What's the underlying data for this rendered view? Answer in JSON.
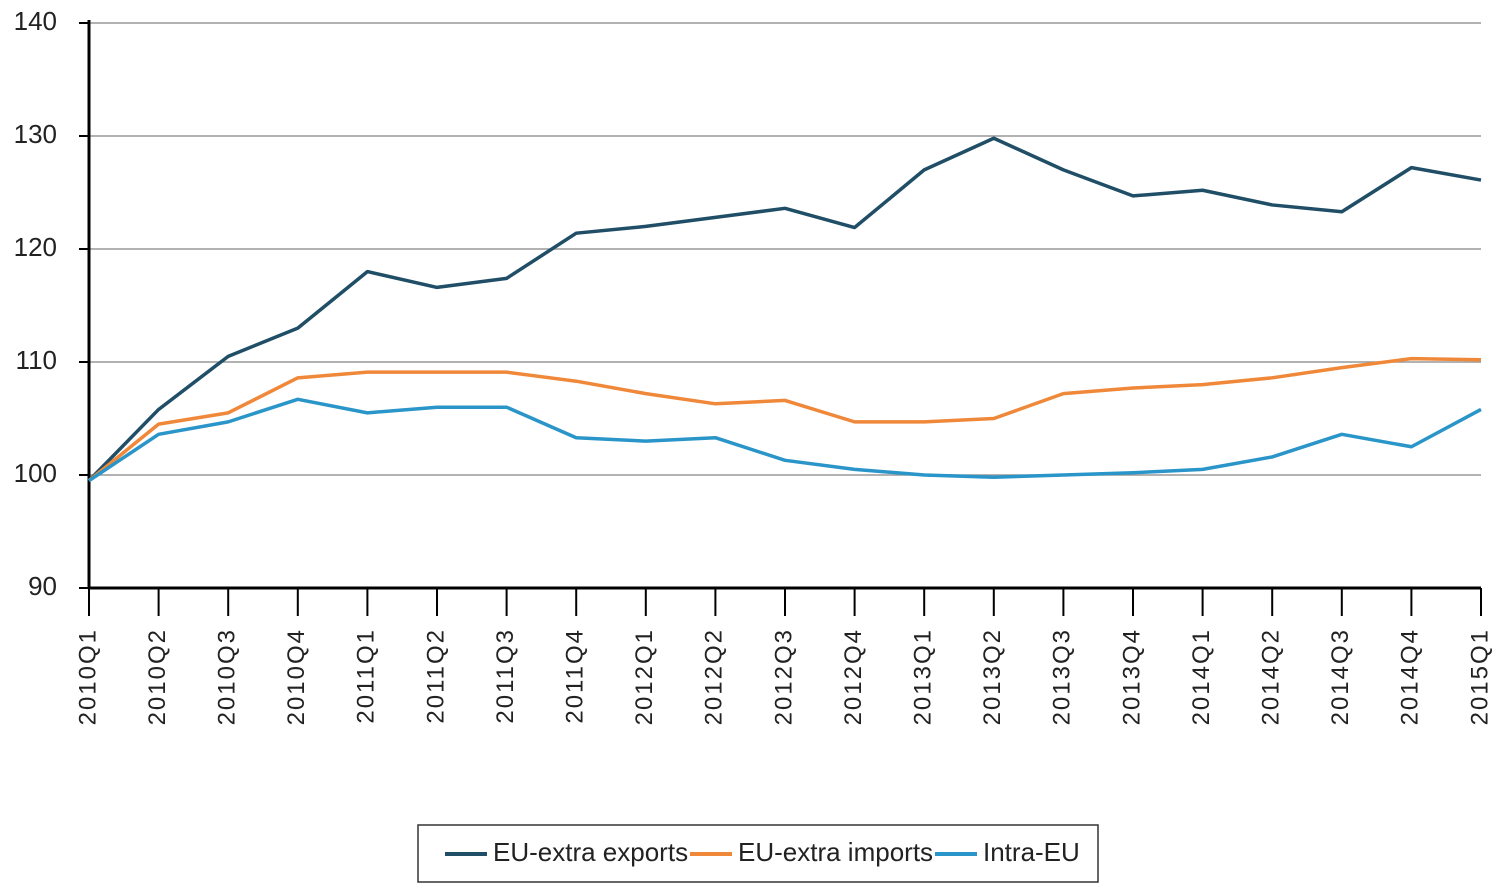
{
  "chart_data": {
    "type": "line",
    "categories": [
      "2010Q1",
      "2010Q2",
      "2010Q3",
      "2010Q4",
      "2011Q1",
      "2011Q2",
      "2011Q3",
      "2011Q4",
      "2012Q1",
      "2012Q2",
      "2012Q3",
      "2012Q4",
      "2013Q1",
      "2013Q2",
      "2013Q3",
      "2013Q4",
      "2014Q1",
      "2014Q2",
      "2014Q3",
      "2014Q4",
      "2015Q1"
    ],
    "series": [
      {
        "name": "EU-extra exports",
        "color": "#1f4e66",
        "values": [
          99.5,
          105.8,
          110.5,
          113,
          118,
          116.6,
          117.4,
          121.4,
          122,
          122.8,
          123.6,
          121.9,
          127,
          129.8,
          127,
          124.7,
          125.2,
          123.9,
          123.3,
          127.2,
          126.1
        ]
      },
      {
        "name": "EU-extra imports",
        "color": "#f0883a",
        "values": [
          99.5,
          104.5,
          105.5,
          108.6,
          109.1,
          109.1,
          109.1,
          108.3,
          107.2,
          106.3,
          106.6,
          104.7,
          104.7,
          105,
          107.2,
          107.7,
          108,
          108.6,
          109.5,
          110.3,
          110.2
        ]
      },
      {
        "name": "Intra-EU",
        "color": "#2a95c8",
        "values": [
          99.5,
          103.6,
          104.7,
          106.7,
          105.5,
          106,
          106,
          103.3,
          103,
          103.3,
          101.3,
          100.5,
          100,
          99.8,
          100,
          100.2,
          100.5,
          101.6,
          103.6,
          102.5,
          105.8
        ]
      }
    ],
    "ylim": [
      90,
      140
    ],
    "yticks": [
      90,
      100,
      110,
      120,
      130,
      140
    ],
    "grid": true,
    "legend": "bottom"
  }
}
